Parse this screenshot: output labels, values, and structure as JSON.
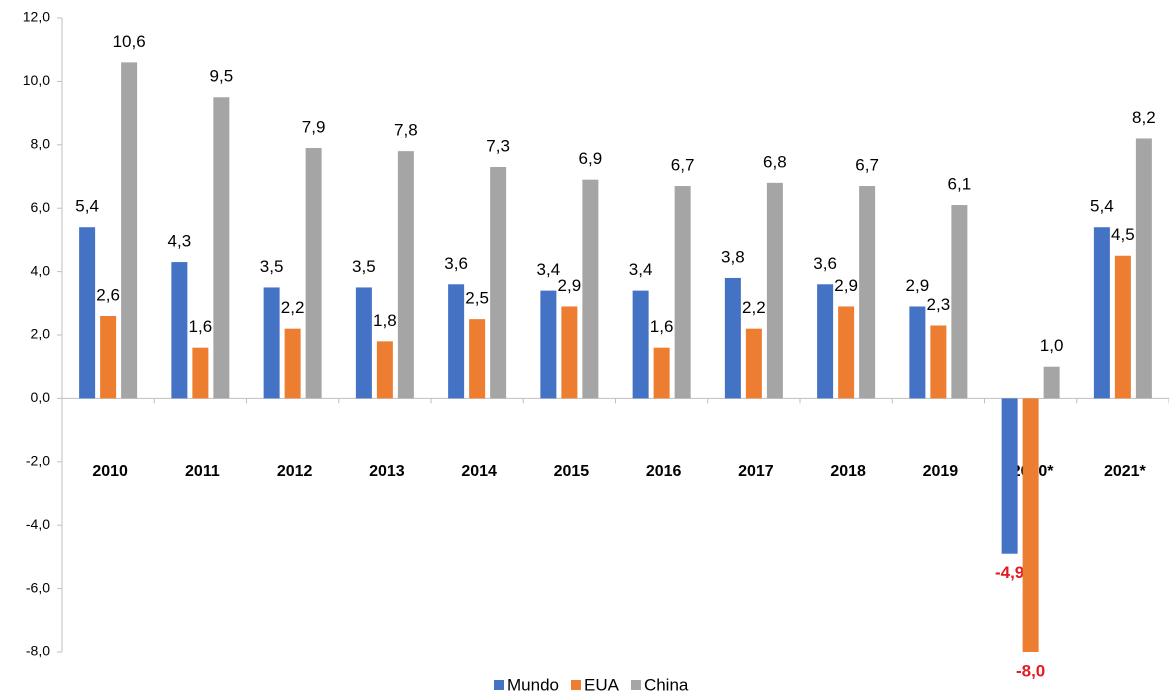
{
  "chart_data": {
    "type": "bar",
    "categories": [
      "2010",
      "2011",
      "2012",
      "2013",
      "2014",
      "2015",
      "2016",
      "2017",
      "2018",
      "2019",
      "2020*",
      "2021*"
    ],
    "series": [
      {
        "name": "Mundo",
        "color": "#4472c4",
        "values": [
          5.4,
          4.3,
          3.5,
          3.5,
          3.6,
          3.4,
          3.4,
          3.8,
          3.6,
          2.9,
          -4.9,
          5.4
        ],
        "value_labels": [
          "5,4",
          "4,3",
          "3,5",
          "3,5",
          "3,6",
          "3,4",
          "3,4",
          "3,8",
          "3,6",
          "2,9",
          "-4,9",
          "5,4"
        ]
      },
      {
        "name": "EUA",
        "color": "#ed7d31",
        "values": [
          2.6,
          1.6,
          2.2,
          1.8,
          2.5,
          2.9,
          1.6,
          2.2,
          2.9,
          2.3,
          -8.0,
          4.5
        ],
        "value_labels": [
          "2,6",
          "1,6",
          "2,2",
          "1,8",
          "2,5",
          "2,9",
          "1,6",
          "2,2",
          "2,9",
          "2,3",
          "-8,0",
          "4,5"
        ]
      },
      {
        "name": "China",
        "color": "#a5a5a5",
        "values": [
          10.6,
          9.5,
          7.9,
          7.8,
          7.3,
          6.9,
          6.7,
          6.8,
          6.7,
          6.1,
          1.0,
          8.2
        ],
        "value_labels": [
          "10,6",
          "9,5",
          "7,9",
          "7,8",
          "7,3",
          "6,9",
          "6,7",
          "6,8",
          "6,7",
          "6,1",
          "1,0",
          "8,2"
        ]
      }
    ],
    "ylim": [
      -8,
      12
    ],
    "yticks": [
      {
        "value": -8,
        "label": "-8,0"
      },
      {
        "value": -6,
        "label": "-6,0"
      },
      {
        "value": -4,
        "label": "-4,0"
      },
      {
        "value": -2,
        "label": "-2,0"
      },
      {
        "value": 0,
        "label": "0,0"
      },
      {
        "value": 2,
        "label": "2,0"
      },
      {
        "value": 4,
        "label": "4,0"
      },
      {
        "value": 6,
        "label": "6,0"
      },
      {
        "value": 8,
        "label": "8,0"
      },
      {
        "value": 10,
        "label": "10,0"
      },
      {
        "value": 12,
        "label": "12,0"
      }
    ],
    "grid": false,
    "legend": "bottom"
  }
}
